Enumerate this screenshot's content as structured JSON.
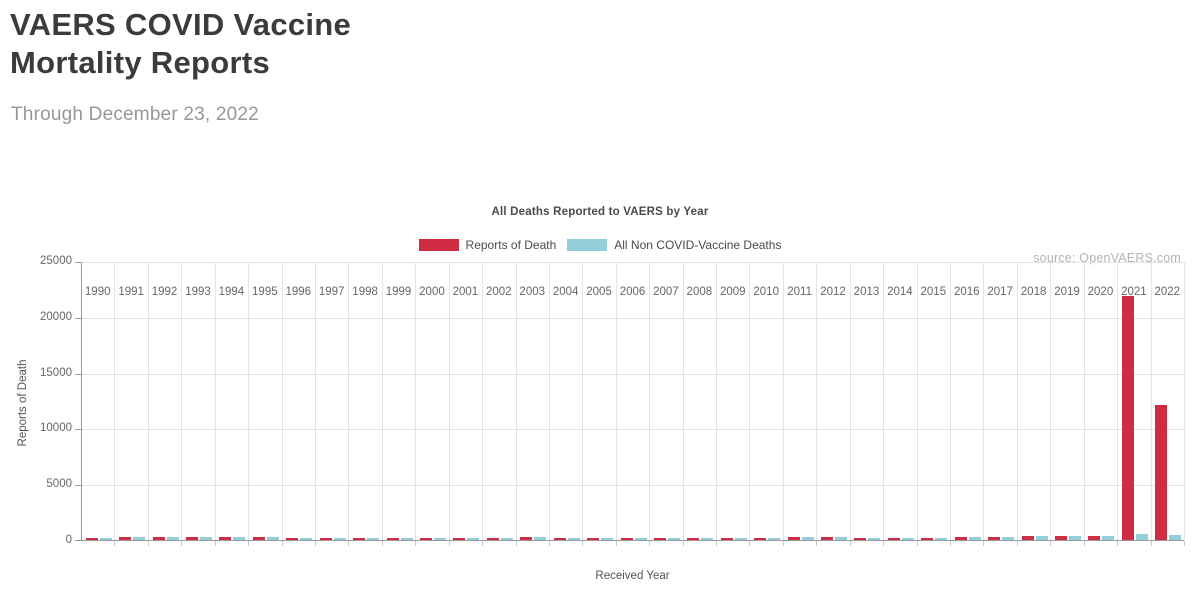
{
  "page": {
    "title": "VAERS COVID Vaccine Mortality Reports",
    "subtitle": "Through December 23, 2022",
    "source": "source: OpenVAERS.com"
  },
  "chart_data": {
    "type": "bar",
    "title": "All Deaths Reported to VAERS by Year",
    "xlabel": "Received Year",
    "ylabel": "Reports of Death",
    "ylim": [
      0,
      25000
    ],
    "y_ticks": [
      0,
      5000,
      10000,
      15000,
      20000,
      25000
    ],
    "grid": true,
    "legend_position": "top-center",
    "categories": [
      1990,
      1991,
      1992,
      1993,
      1994,
      1995,
      1996,
      1997,
      1998,
      1999,
      2000,
      2001,
      2002,
      2003,
      2004,
      2005,
      2006,
      2007,
      2008,
      2009,
      2010,
      2011,
      2012,
      2013,
      2014,
      2015,
      2016,
      2017,
      2018,
      2019,
      2020,
      2021,
      2022
    ],
    "series": [
      {
        "name": "Reports of Death",
        "color": "#CE2B45",
        "values": [
          179,
          263,
          246,
          277,
          242,
          230,
          177,
          157,
          177,
          180,
          176,
          183,
          190,
          226,
          192,
          168,
          171,
          176,
          218,
          219,
          183,
          227,
          227,
          215,
          206,
          215,
          265,
          280,
          332,
          403,
          370,
          21900,
          12100
        ]
      },
      {
        "name": "All Non COVID-Vaccine Deaths",
        "color": "#92CFDB",
        "values": [
          179,
          263,
          246,
          277,
          242,
          230,
          177,
          157,
          177,
          180,
          176,
          183,
          190,
          226,
          192,
          168,
          171,
          176,
          218,
          219,
          183,
          227,
          227,
          215,
          206,
          215,
          265,
          280,
          332,
          403,
          340,
          550,
          430
        ]
      }
    ]
  }
}
